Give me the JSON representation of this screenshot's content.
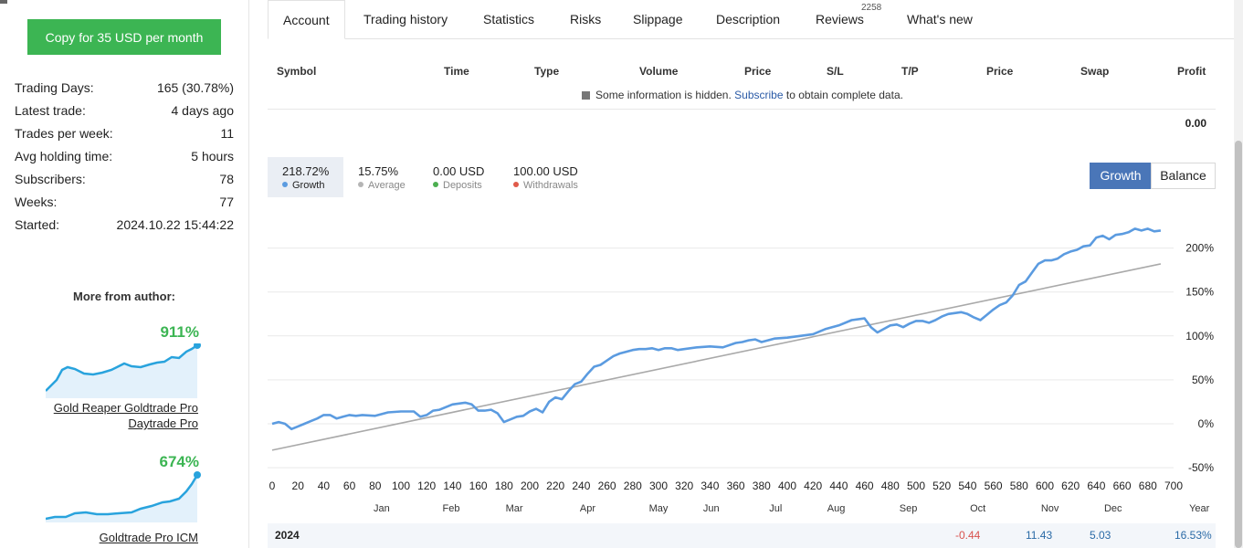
{
  "copy_button": "Copy for 35 USD per month",
  "stats": [
    {
      "label": "Trading Days:",
      "value": "165 (30.78%)"
    },
    {
      "label": "Latest trade:",
      "value": "4 days ago"
    },
    {
      "label": "Trades per week:",
      "value": "11"
    },
    {
      "label": "Avg holding time:",
      "value": "5 hours"
    },
    {
      "label": "Subscribers:",
      "value": "78"
    },
    {
      "label": "Weeks:",
      "value": "77"
    },
    {
      "label": "Started:",
      "value": "2024.10.22 15:44:22"
    }
  ],
  "more_from_author": "More from author:",
  "author_products": [
    {
      "pct": "911%",
      "name": "Gold Reaper Goldtrade Pro Daytrade Pro"
    },
    {
      "pct": "674%",
      "name": "Goldtrade Pro ICM"
    }
  ],
  "tabs": [
    "Account",
    "Trading history",
    "Statistics",
    "Risks",
    "Slippage",
    "Description",
    "Reviews",
    "What's new"
  ],
  "reviews_count": "2258",
  "table_headers": [
    "Symbol",
    "Time",
    "Type",
    "Volume",
    "Price",
    "S/L",
    "T/P",
    "Price",
    "Swap",
    "Profit"
  ],
  "hidden_info": {
    "prefix": "Some information is hidden.",
    "link": "Subscribe",
    "suffix": "to obtain complete data."
  },
  "table_total": "0.00",
  "legend": [
    {
      "value": "218.72%",
      "label": "Growth",
      "color": "#5b9be0"
    },
    {
      "value": "15.75%",
      "label": "Average",
      "color": "#b5b5b5"
    },
    {
      "value": "0.00 USD",
      "label": "Deposits",
      "color": "#4caf50"
    },
    {
      "value": "100.00 USD",
      "label": "Withdrawals",
      "color": "#e05a4a"
    }
  ],
  "toggle": {
    "growth": "Growth",
    "balance": "Balance"
  },
  "chart_data": {
    "type": "line",
    "xlim": [
      0,
      700
    ],
    "ylim": [
      -50,
      250
    ],
    "x_ticks": [
      0,
      20,
      40,
      60,
      80,
      100,
      120,
      140,
      160,
      180,
      200,
      220,
      240,
      260,
      280,
      300,
      320,
      340,
      360,
      380,
      400,
      420,
      440,
      460,
      480,
      500,
      520,
      540,
      560,
      580,
      600,
      620,
      640,
      660,
      680,
      700
    ],
    "y_ticks": [
      "200%",
      "150%",
      "100%",
      "50%",
      "0%",
      "-50%"
    ],
    "y_tick_values": [
      200,
      150,
      100,
      50,
      0,
      -50
    ],
    "month_labels": [
      "Jan",
      "Feb",
      "Mar",
      "Apr",
      "May",
      "Jun",
      "Jul",
      "Aug",
      "Sep",
      "Oct",
      "Nov",
      "Dec",
      "Year"
    ],
    "month_positions": [
      85,
      139,
      188,
      245,
      300,
      341,
      391,
      438,
      494,
      548,
      604,
      653,
      720
    ],
    "series": [
      {
        "color": "#5b9be0",
        "x": [
          0,
          5,
          10,
          15,
          20,
          25,
          30,
          35,
          40,
          45,
          50,
          55,
          60,
          65,
          70,
          80,
          90,
          100,
          110,
          115,
          120,
          125,
          130,
          140,
          150,
          155,
          160,
          165,
          170,
          175,
          180,
          185,
          190,
          195,
          200,
          205,
          210,
          215,
          220,
          225,
          230,
          235,
          240,
          245,
          250,
          255,
          260,
          265,
          270,
          275,
          280,
          285,
          290,
          295,
          300,
          305,
          310,
          315,
          320,
          330,
          340,
          350,
          360,
          365,
          370,
          375,
          380,
          390,
          400,
          410,
          420,
          430,
          440,
          450,
          460,
          465,
          470,
          475,
          480,
          485,
          490,
          495,
          500,
          505,
          510,
          515,
          520,
          525,
          530,
          535,
          540,
          545,
          550,
          555,
          560,
          565,
          570,
          575,
          580,
          585,
          590,
          595,
          600,
          605,
          610,
          615,
          620,
          625,
          630,
          635,
          640,
          645,
          650,
          655,
          660,
          665,
          670,
          675,
          680,
          685,
          690
        ],
        "y": [
          0,
          2,
          0,
          -6,
          -3,
          0,
          3,
          6,
          10,
          10,
          6,
          8,
          10,
          9,
          10,
          9,
          13,
          14,
          14,
          8,
          10,
          15,
          16,
          22,
          24,
          22,
          15,
          15,
          16,
          12,
          2,
          5,
          8,
          9,
          14,
          17,
          13,
          25,
          30,
          28,
          37,
          45,
          48,
          57,
          65,
          67,
          72,
          77,
          80,
          82,
          84,
          85,
          85,
          86,
          84,
          86,
          86,
          84,
          85,
          87,
          88,
          87,
          92,
          93,
          95,
          96,
          93,
          97,
          98,
          100,
          102,
          108,
          112,
          118,
          120,
          110,
          104,
          108,
          112,
          113,
          110,
          114,
          117,
          117,
          115,
          118,
          122,
          125,
          126,
          127,
          125,
          121,
          118,
          124,
          130,
          135,
          138,
          146,
          158,
          162,
          172,
          182,
          186,
          186,
          188,
          193,
          196,
          198,
          202,
          203,
          212,
          214,
          210,
          215,
          216,
          218,
          222,
          220,
          222,
          219,
          220
        ],
        "trend_start": -30,
        "trend_end": 182
      }
    ]
  },
  "bottom_row": {
    "year": "2024",
    "oct": "-0.44",
    "nov": "11.43",
    "dec": "5.03",
    "year_total": "16.53%"
  }
}
